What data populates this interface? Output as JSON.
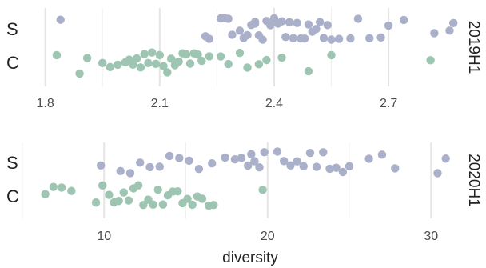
{
  "chart_data": [
    {
      "type": "scatter",
      "panel_label": "2019H1",
      "categories": [
        "C",
        "S"
      ],
      "xlim": [
        1.74,
        2.88
      ],
      "xticks": [
        1.8,
        2.1,
        2.4,
        2.7
      ],
      "xtick_labels": [
        "1.8",
        "2.1",
        "2.4",
        "2.7"
      ],
      "show_xtick_labels": true,
      "grid": true,
      "series": [
        {
          "category": "S",
          "color": "#aab0c9",
          "x": [
            1.84,
            2.22,
            2.23,
            2.26,
            2.27,
            2.28,
            2.29,
            2.31,
            2.32,
            2.33,
            2.34,
            2.35,
            2.35,
            2.36,
            2.37,
            2.38,
            2.39,
            2.4,
            2.41,
            2.42,
            2.43,
            2.44,
            2.45,
            2.46,
            2.47,
            2.48,
            2.49,
            2.5,
            2.51,
            2.52,
            2.53,
            2.54,
            2.55,
            2.57,
            2.6,
            2.62,
            2.65,
            2.68,
            2.7,
            2.74,
            2.82,
            2.86,
            2.87
          ]
        },
        {
          "category": "C",
          "color": "#9ec4b2",
          "x": [
            1.83,
            1.89,
            1.91,
            1.95,
            1.97,
            1.99,
            2.01,
            2.02,
            2.03,
            2.04,
            2.05,
            2.06,
            2.07,
            2.08,
            2.09,
            2.1,
            2.11,
            2.12,
            2.13,
            2.14,
            2.15,
            2.16,
            2.17,
            2.18,
            2.19,
            2.2,
            2.21,
            2.23,
            2.26,
            2.28,
            2.31,
            2.33,
            2.36,
            2.38,
            2.42,
            2.49,
            2.55,
            2.81
          ]
        }
      ]
    },
    {
      "type": "scatter",
      "panel_label": "2020H1",
      "categories": [
        "C",
        "S"
      ],
      "xlim": [
        5.0,
        31.6
      ],
      "xticks": [
        10,
        20,
        30
      ],
      "xtick_labels": [
        "10",
        "20",
        "30"
      ],
      "show_xtick_labels": true,
      "grid": true,
      "series": [
        {
          "category": "S",
          "color": "#aab0c9",
          "x": [
            9.8,
            11.0,
            11.6,
            12.2,
            12.8,
            13.4,
            14.0,
            14.6,
            15.2,
            15.8,
            16.6,
            17.4,
            18.0,
            18.4,
            18.8,
            19.0,
            19.2,
            19.5,
            19.8,
            20.6,
            21.0,
            21.4,
            21.8,
            22.2,
            22.6,
            23.0,
            23.4,
            23.8,
            24.2,
            24.6,
            25.0,
            26.2,
            27.0,
            27.8,
            30.4,
            30.9
          ]
        },
        {
          "category": "C",
          "color": "#9ec4b2",
          "x": [
            6.4,
            6.9,
            7.4,
            8.0,
            9.5,
            9.9,
            10.3,
            10.6,
            10.9,
            11.2,
            11.5,
            11.8,
            12.1,
            12.4,
            12.7,
            13.0,
            13.3,
            13.6,
            13.9,
            14.2,
            14.5,
            14.8,
            15.1,
            15.4,
            15.7,
            16.0,
            16.4,
            16.7,
            19.7
          ]
        }
      ]
    }
  ],
  "xlabel": "diversity",
  "colors": {
    "S": "#aab0c9",
    "C": "#9ec4b2",
    "grid": "#e5e5e5",
    "text": "#222222",
    "tick_label": "#4d4d4d"
  }
}
